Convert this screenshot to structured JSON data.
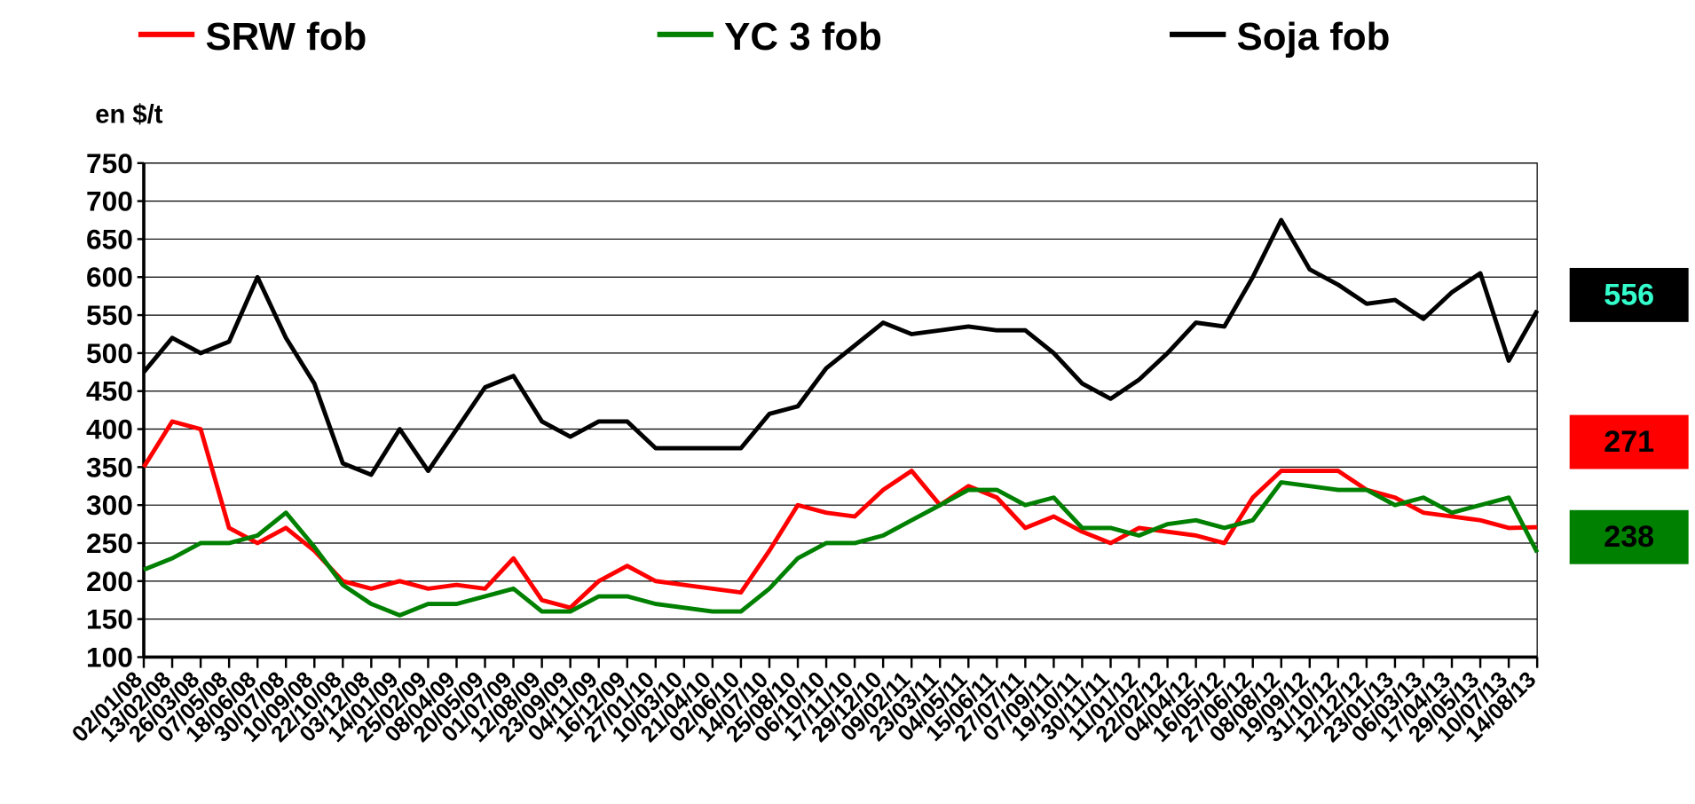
{
  "chart_data": {
    "type": "line",
    "y_label": "en $/t",
    "categories": [
      "02/01/08",
      "13/02/08",
      "26/03/08",
      "07/05/08",
      "18/06/08",
      "30/07/08",
      "10/09/08",
      "22/10/08",
      "03/12/08",
      "14/01/09",
      "25/02/09",
      "08/04/09",
      "20/05/09",
      "01/07/09",
      "12/08/09",
      "23/09/09",
      "04/11/09",
      "16/12/09",
      "27/01/10",
      "10/03/10",
      "21/04/10",
      "02/06/10",
      "14/07/10",
      "25/08/10",
      "06/10/10",
      "17/11/10",
      "29/12/10",
      "09/02/11",
      "23/03/11",
      "04/05/11",
      "15/06/11",
      "27/07/11",
      "07/09/11",
      "19/10/11",
      "30/11/11",
      "11/01/12",
      "22/02/12",
      "04/04/12",
      "16/05/12",
      "27/06/12",
      "08/08/12",
      "19/09/12",
      "31/10/12",
      "12/12/12",
      "23/01/13",
      "06/03/13",
      "17/04/13",
      "29/05/13",
      "10/07/13",
      "14/08/13"
    ],
    "series": [
      {
        "name": "SRW fob",
        "color": "#ff0000",
        "end_label_text_color": "#000000",
        "values": [
          350,
          410,
          400,
          270,
          250,
          270,
          240,
          200,
          190,
          200,
          190,
          195,
          190,
          230,
          175,
          165,
          200,
          220,
          200,
          195,
          190,
          185,
          240,
          300,
          290,
          285,
          320,
          345,
          300,
          325,
          310,
          270,
          285,
          265,
          250,
          270,
          265,
          260,
          250,
          310,
          345,
          345,
          345,
          320,
          310,
          290,
          285,
          280,
          270,
          271
        ]
      },
      {
        "name": "YC 3 fob",
        "color": "#008000",
        "end_label_text_color": "#000000",
        "values": [
          215,
          230,
          250,
          250,
          260,
          290,
          245,
          195,
          170,
          155,
          170,
          170,
          180,
          190,
          160,
          160,
          180,
          180,
          170,
          165,
          160,
          160,
          190,
          230,
          250,
          250,
          260,
          280,
          300,
          320,
          320,
          300,
          310,
          270,
          270,
          260,
          275,
          280,
          270,
          280,
          330,
          325,
          320,
          320,
          300,
          310,
          290,
          300,
          310,
          238
        ]
      },
      {
        "name": "Soja fob",
        "color": "#000000",
        "end_label_text_color": "#33ffcc",
        "values": [
          475,
          520,
          500,
          515,
          600,
          520,
          460,
          355,
          340,
          400,
          345,
          400,
          455,
          470,
          410,
          390,
          410,
          410,
          375,
          375,
          375,
          375,
          420,
          430,
          480,
          510,
          540,
          525,
          530,
          535,
          530,
          530,
          500,
          460,
          440,
          465,
          500,
          540,
          535,
          600,
          675,
          610,
          590,
          565,
          570,
          545,
          580,
          605,
          490,
          556
        ]
      }
    ],
    "ylim": [
      100,
      750
    ],
    "yticks": [
      100,
      150,
      200,
      250,
      300,
      350,
      400,
      450,
      500,
      550,
      600,
      650,
      700,
      750
    ],
    "grid": true
  }
}
